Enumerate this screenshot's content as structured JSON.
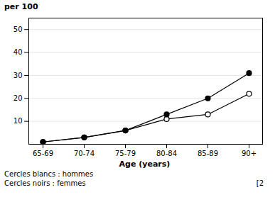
{
  "chart_data": {
    "type": "line",
    "xlabel": "Age (years)",
    "ylabel": "per 100",
    "categories": [
      "65-69",
      "70-74",
      "75-79",
      "80-84",
      "85-89",
      "90+"
    ],
    "series": [
      {
        "name": "Cercles blancs : hommes",
        "color": "#000000",
        "marker": "circle_open",
        "values": [
          1.0,
          3.0,
          6.0,
          11.0,
          13.0,
          22.0
        ]
      },
      {
        "name": "Cercles noirs : femmes",
        "color": "#000000",
        "marker": "circle",
        "values": [
          1.0,
          3.0,
          6.0,
          13.0,
          20.0,
          31.0
        ]
      }
    ],
    "annotations": [
      "[2"
    ],
    "ylim": [
      0,
      55
    ],
    "yticks": [
      10,
      20,
      30,
      40,
      50
    ],
    "grid": true,
    "legend": "bottom"
  }
}
